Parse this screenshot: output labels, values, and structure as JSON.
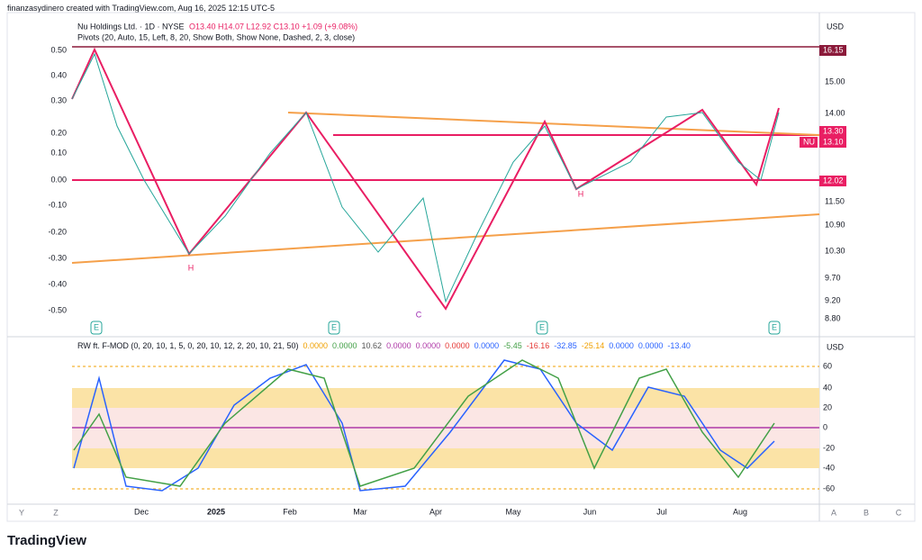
{
  "header": {
    "credit": "finanzasydinero created with TradingView.com, Aug 16, 2025 12:15 UTC-5"
  },
  "legend": {
    "symbol": "Nu Holdings Ltd. · 1D · NYSE",
    "ohlc": "O13.40 H14.07 L12.92 C13.10 +1.09 (+9.08%)",
    "pivots": "Pivots (20, Auto, 15, Left, 8, 20, Show Both, Show None, Dashed, 2, 3, close)"
  },
  "price_axis": {
    "currency": "USD",
    "labels": [
      "15.00",
      "14.00",
      "11.50",
      "10.90",
      "10.30",
      "9.70",
      "9.20",
      "8.80"
    ],
    "tags": [
      {
        "text": "16.15"
      },
      {
        "text": "13.30"
      },
      {
        "text": "13.10",
        "symbol": "NU"
      },
      {
        "text": "12.02"
      }
    ]
  },
  "left_axis": {
    "labels": [
      "0.50",
      "0.40",
      "0.30",
      "0.20",
      "0.10",
      "0.00",
      "-0.10",
      "-0.20",
      "-0.30",
      "-0.40",
      "-0.50"
    ]
  },
  "markers": [
    "E",
    "E",
    "E",
    "E",
    "C",
    "H",
    "H"
  ],
  "oscillator": {
    "legend": "RW ft. F-MOD (0, 20, 10, 1, 5, 0, 20, 10, 12, 2, 20, 10, 21, 50)",
    "values": [
      "0.0000",
      "0.0000",
      "10.62",
      "0.0000",
      "0.0000",
      "0.0000",
      "0.0000",
      "-5.45",
      "-16.16",
      "-32.85",
      "-25.14",
      "0.0000",
      "0.0000",
      "-13.40"
    ],
    "currency": "USD",
    "ticks": [
      "60",
      "40",
      "20",
      "0",
      "-20",
      "-40",
      "-60"
    ]
  },
  "time_axis": [
    "Dec",
    "2025",
    "Feb",
    "Mar",
    "Apr",
    "May",
    "Jun",
    "Jul",
    "Aug"
  ],
  "footer": {
    "logo": "TradingView",
    "corner_labels": [
      "Y",
      "Z",
      "A",
      "B",
      "C"
    ]
  }
}
